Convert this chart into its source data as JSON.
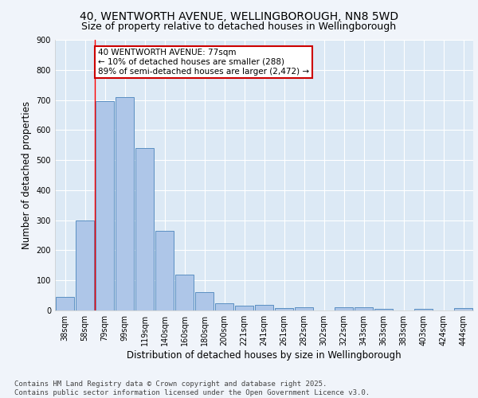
{
  "title": "40, WENTWORTH AVENUE, WELLINGBOROUGH, NN8 5WD",
  "subtitle": "Size of property relative to detached houses in Wellingborough",
  "xlabel": "Distribution of detached houses by size in Wellingborough",
  "ylabel": "Number of detached properties",
  "categories": [
    "38sqm",
    "58sqm",
    "79sqm",
    "99sqm",
    "119sqm",
    "140sqm",
    "160sqm",
    "180sqm",
    "200sqm",
    "221sqm",
    "241sqm",
    "261sqm",
    "282sqm",
    "302sqm",
    "322sqm",
    "343sqm",
    "363sqm",
    "383sqm",
    "403sqm",
    "424sqm",
    "444sqm"
  ],
  "values": [
    45,
    300,
    695,
    710,
    540,
    265,
    120,
    60,
    25,
    15,
    18,
    8,
    10,
    0,
    10,
    10,
    5,
    0,
    5,
    0,
    8
  ],
  "bar_color": "#aec6e8",
  "bar_edge_color": "#5a8fc2",
  "red_line_index": 1.5,
  "annotation_text": "40 WENTWORTH AVENUE: 77sqm\n← 10% of detached houses are smaller (288)\n89% of semi-detached houses are larger (2,472) →",
  "annotation_box_color": "#ffffff",
  "annotation_box_edge_color": "#cc0000",
  "plot_bg_color": "#dce9f5",
  "fig_bg_color": "#f0f4fa",
  "footer_text": "Contains HM Land Registry data © Crown copyright and database right 2025.\nContains public sector information licensed under the Open Government Licence v3.0.",
  "ylim": [
    0,
    900
  ],
  "yticks": [
    0,
    100,
    200,
    300,
    400,
    500,
    600,
    700,
    800,
    900
  ],
  "grid_color": "#ffffff",
  "title_fontsize": 10,
  "subtitle_fontsize": 9,
  "axis_label_fontsize": 8.5,
  "tick_fontsize": 7,
  "footer_fontsize": 6.5,
  "annotation_fontsize": 7.5
}
